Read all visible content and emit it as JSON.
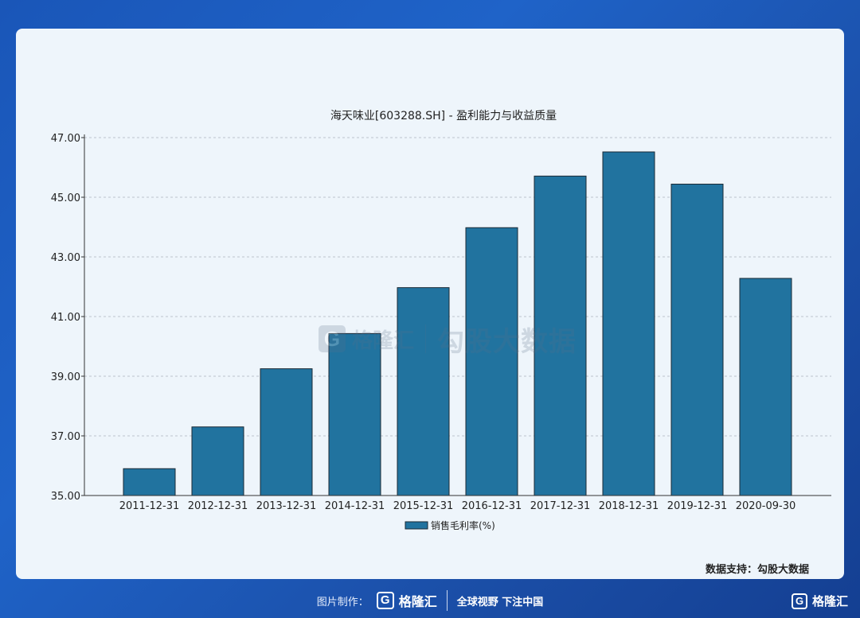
{
  "chart_data": {
    "type": "bar",
    "title": "海天味业[603288.SH] - 盈利能力与收益质量",
    "categories": [
      "2011-12-31",
      "2012-12-31",
      "2013-12-31",
      "2014-12-31",
      "2015-12-31",
      "2016-12-31",
      "2017-12-31",
      "2018-12-31",
      "2019-12-31",
      "2020-09-30"
    ],
    "series": [
      {
        "name": "销售毛利率(%)",
        "values": [
          35.9,
          37.3,
          39.25,
          40.43,
          41.97,
          43.98,
          45.71,
          46.52,
          45.44,
          42.28
        ]
      }
    ],
    "yticks": [
      "35.00",
      "37.00",
      "39.00",
      "41.00",
      "43.00",
      "45.00",
      "47.00"
    ],
    "ylim": [
      35,
      47
    ],
    "grid": true,
    "legend": "bottom-center",
    "bar_color": "#21739f",
    "bar_stroke": "#1b2a36"
  },
  "watermark": {
    "logo_glyph": "G",
    "brand": "格隆汇",
    "text": "勾股大数据"
  },
  "source_note": "数据支持：勾股大数据",
  "footer": {
    "label": "图片制作：",
    "logo_glyph": "G",
    "brand": "格隆汇",
    "slogan": "全球视野 下注中国"
  },
  "corner_brand": {
    "logo_glyph": "G",
    "brand": "格隆汇"
  },
  "colors": {
    "background": "#1f63c8",
    "card": "#eef5fb",
    "grid": "#bcc4cc",
    "axis": "#333333"
  }
}
